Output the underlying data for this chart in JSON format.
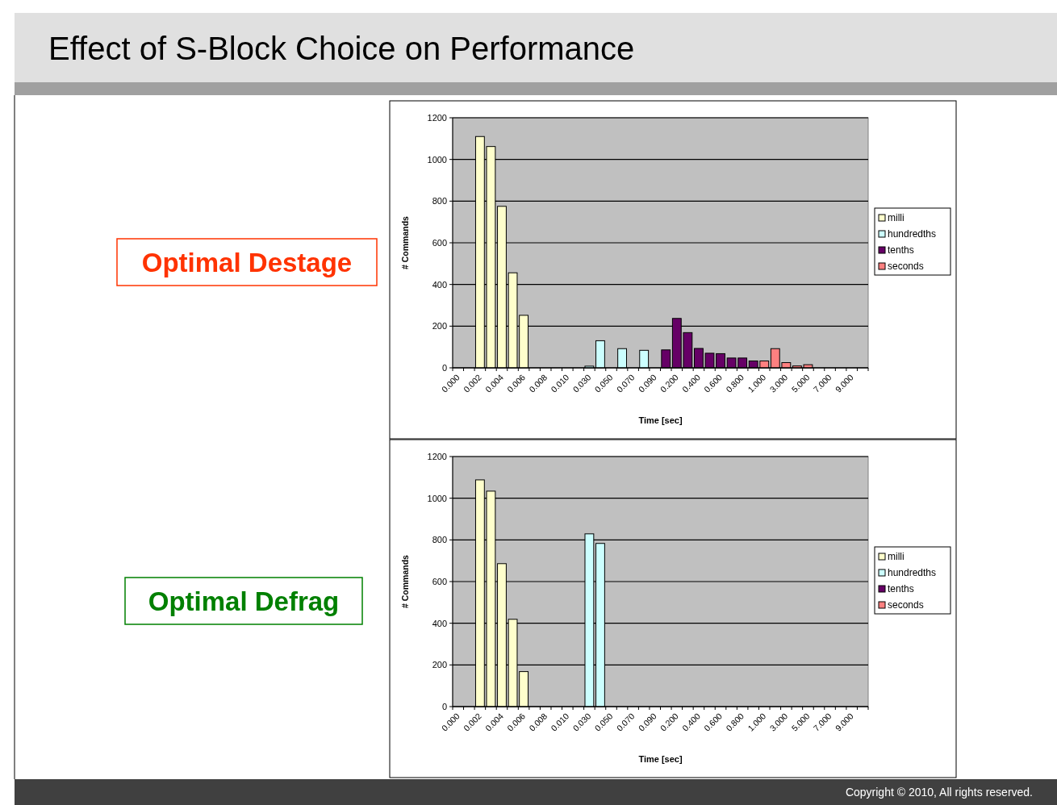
{
  "chart_data": [
    {
      "type": "bar",
      "title": "Optimal Destage",
      "annotations": [
        "Effect of S-Block Choice on Performance"
      ],
      "xlabel": "Time [sec]",
      "ylabel": "# Commands",
      "categories": [
        "0.000",
        null,
        "0.002",
        null,
        "0.004",
        null,
        "0.006",
        null,
        "0.008",
        null,
        "0.010",
        null,
        "0.030",
        null,
        "0.050",
        null,
        "0.070",
        null,
        "0.090",
        null,
        "0.200",
        null,
        "0.400",
        null,
        "0.600",
        null,
        "0.800",
        null,
        "1.000",
        null,
        "3.000",
        null,
        "5.000",
        null,
        "7.000",
        null,
        "9.000",
        null
      ],
      "series": [
        {
          "name": "milli",
          "color": "#ffffcc",
          "values": [
            null,
            null,
            1110,
            1062,
            775,
            456,
            252,
            null,
            null,
            null,
            null,
            null,
            null,
            null,
            null,
            null,
            null,
            null,
            null,
            null,
            null,
            null,
            null,
            null,
            null,
            null,
            null,
            null,
            null,
            null,
            null,
            null,
            null,
            null,
            null,
            null,
            null,
            null
          ]
        },
        {
          "name": "hundredths",
          "color": "#ccffff",
          "values": [
            null,
            null,
            null,
            null,
            null,
            null,
            null,
            null,
            null,
            null,
            null,
            null,
            8,
            130,
            null,
            92,
            null,
            84,
            null,
            null,
            null,
            null,
            null,
            null,
            null,
            null,
            null,
            null,
            null,
            null,
            null,
            null,
            null,
            null,
            null,
            null,
            null,
            null
          ]
        },
        {
          "name": "tenths",
          "color": "#660066",
          "values": [
            null,
            null,
            null,
            null,
            null,
            null,
            null,
            null,
            null,
            null,
            null,
            null,
            null,
            null,
            null,
            null,
            null,
            null,
            null,
            86,
            237,
            169,
            93,
            70,
            68,
            47,
            47,
            33,
            null,
            null,
            null,
            null,
            null,
            null,
            null,
            null,
            null,
            null
          ]
        },
        {
          "name": "seconds",
          "color": "#ff8080",
          "values": [
            null,
            null,
            null,
            null,
            null,
            null,
            null,
            null,
            null,
            null,
            null,
            null,
            null,
            null,
            null,
            null,
            null,
            null,
            null,
            null,
            null,
            null,
            null,
            null,
            null,
            null,
            null,
            null,
            33,
            92,
            25,
            9,
            15,
            null,
            null,
            null,
            null,
            null
          ]
        }
      ],
      "ylim": [
        0,
        1200
      ],
      "yticks": [
        0,
        200,
        400,
        600,
        800,
        1000,
        1200
      ],
      "grid": "y",
      "legend": "right"
    },
    {
      "type": "bar",
      "title": "Optimal Defrag",
      "annotations": [
        "Copyright © 2010, All rights reserved."
      ],
      "xlabel": "Time [sec]",
      "ylabel": "# Commands",
      "categories": [
        "0.000",
        null,
        "0.002",
        null,
        "0.004",
        null,
        "0.006",
        null,
        "0.008",
        null,
        "0.010",
        null,
        "0.030",
        null,
        "0.050",
        null,
        "0.070",
        null,
        "0.090",
        null,
        "0.200",
        null,
        "0.400",
        null,
        "0.600",
        null,
        "0.800",
        null,
        "1.000",
        null,
        "3.000",
        null,
        "5.000",
        null,
        "7.000",
        null,
        "9.000",
        null
      ],
      "series": [
        {
          "name": "milli",
          "color": "#ffffcc",
          "values": [
            null,
            null,
            1088,
            1034,
            686,
            419,
            168,
            null,
            null,
            null,
            null,
            null,
            null,
            null,
            null,
            null,
            null,
            null,
            null,
            null,
            null,
            null,
            null,
            null,
            null,
            null,
            null,
            null,
            null,
            null,
            null,
            null,
            null,
            null,
            null,
            null,
            null,
            null
          ]
        },
        {
          "name": "hundredths",
          "color": "#ccffff",
          "values": [
            null,
            null,
            null,
            null,
            null,
            null,
            null,
            null,
            null,
            null,
            null,
            null,
            829,
            783,
            null,
            null,
            null,
            null,
            null,
            null,
            null,
            null,
            null,
            null,
            null,
            null,
            null,
            null,
            null,
            null,
            null,
            null,
            null,
            null,
            null,
            null,
            null,
            null
          ]
        },
        {
          "name": "tenths",
          "color": "#660066",
          "values": [
            null,
            null,
            null,
            null,
            null,
            null,
            null,
            null,
            null,
            null,
            null,
            null,
            null,
            null,
            null,
            null,
            null,
            null,
            null,
            null,
            null,
            null,
            null,
            null,
            null,
            null,
            null,
            null,
            null,
            null,
            null,
            null,
            null,
            null,
            null,
            null,
            null,
            null
          ]
        },
        {
          "name": "seconds",
          "color": "#ff8080",
          "values": [
            null,
            null,
            null,
            null,
            null,
            null,
            null,
            null,
            null,
            null,
            null,
            null,
            null,
            null,
            null,
            null,
            null,
            null,
            null,
            null,
            null,
            null,
            null,
            null,
            null,
            null,
            null,
            null,
            null,
            null,
            null,
            null,
            null,
            null,
            null,
            null,
            null,
            null
          ]
        }
      ],
      "ylim": [
        0,
        1200
      ],
      "yticks": [
        0,
        200,
        400,
        600,
        800,
        1000,
        1200
      ],
      "grid": "y",
      "legend": "right"
    }
  ]
}
